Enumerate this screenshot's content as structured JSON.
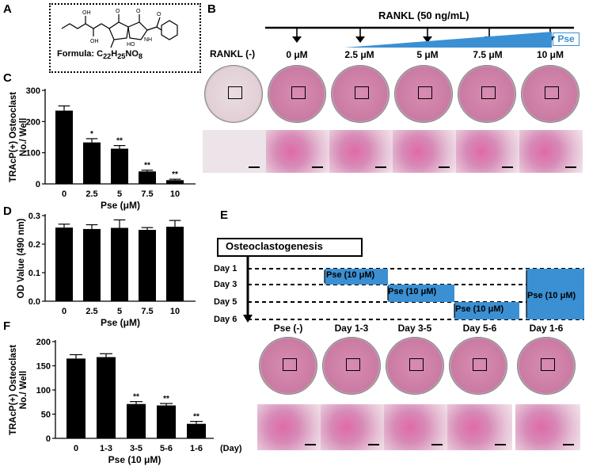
{
  "panels": {
    "A": {
      "letter": "A",
      "formula_prefix": "Formula: C",
      "formula_sub1": "22",
      "formula_mid1": "H",
      "formula_sub2": "25",
      "formula_mid2": "NO",
      "formula_sub3": "8"
    },
    "B": {
      "letter": "B",
      "rankl_title": "RANKL (50 ng/mL)",
      "rankl_neg": "RANKL (-)",
      "conc_labels": [
        "0 μM",
        "2.5 μM",
        "5 μM",
        "7.5 μM",
        "10 μM"
      ],
      "pse_tag": "Pse"
    },
    "C": {
      "letter": "C"
    },
    "D": {
      "letter": "D"
    },
    "E": {
      "letter": "E",
      "box_title": "Osteoclastogenesis",
      "days": [
        "Day 1",
        "Day 3",
        "Day 5",
        "Day 6"
      ],
      "pse_label": "Pse (10 μM)",
      "col_labels": [
        "Pse (-)",
        "Day 1-3",
        "Day 3-5",
        "Day 5-6",
        "Day 1-6"
      ]
    },
    "F": {
      "letter": "F"
    }
  },
  "chart_data": [
    {
      "type": "bar",
      "panel": "C",
      "categories": [
        "0",
        "2.5",
        "5",
        "7.5",
        "10"
      ],
      "values": [
        235,
        133,
        113,
        40,
        12
      ],
      "errors": [
        15,
        12,
        10,
        4,
        3
      ],
      "significance": [
        "",
        "*",
        "**",
        "**",
        "**"
      ],
      "xlabel": "Pse (μM)",
      "ylabel_lines": [
        "TRAcP(+) Osteoclast",
        "No./ Well"
      ],
      "ylim": [
        0,
        300
      ],
      "yticks": [
        0,
        100,
        200,
        300
      ]
    },
    {
      "type": "bar",
      "panel": "D",
      "categories": [
        "0",
        "2.5",
        "5",
        "7.5",
        "10"
      ],
      "values": [
        0.258,
        0.253,
        0.257,
        0.25,
        0.261
      ],
      "errors": [
        0.012,
        0.015,
        0.028,
        0.008,
        0.022
      ],
      "xlabel": "Pse (μM)",
      "ylabel_lines": [
        "OD Value (490 nm)"
      ],
      "ylim": [
        0,
        0.3
      ],
      "yticks": [
        "0.0",
        "0.1",
        "0.2",
        "0.3"
      ]
    },
    {
      "type": "bar",
      "panel": "F",
      "categories": [
        "0",
        "1-3",
        "3-5",
        "5-6",
        "1-6"
      ],
      "values": [
        165,
        168,
        71,
        68,
        30
      ],
      "errors": [
        8,
        7,
        5,
        4,
        5
      ],
      "significance": [
        "",
        "",
        "**",
        "**",
        "**"
      ],
      "xlabel": "Pse (10 μM)",
      "x_unit": "(Day)",
      "ylabel_lines": [
        "TRAcP(+) Osteoclast",
        "No./ Well"
      ],
      "ylim": [
        0,
        200
      ],
      "yticks": [
        0,
        50,
        100,
        150,
        200
      ]
    }
  ]
}
